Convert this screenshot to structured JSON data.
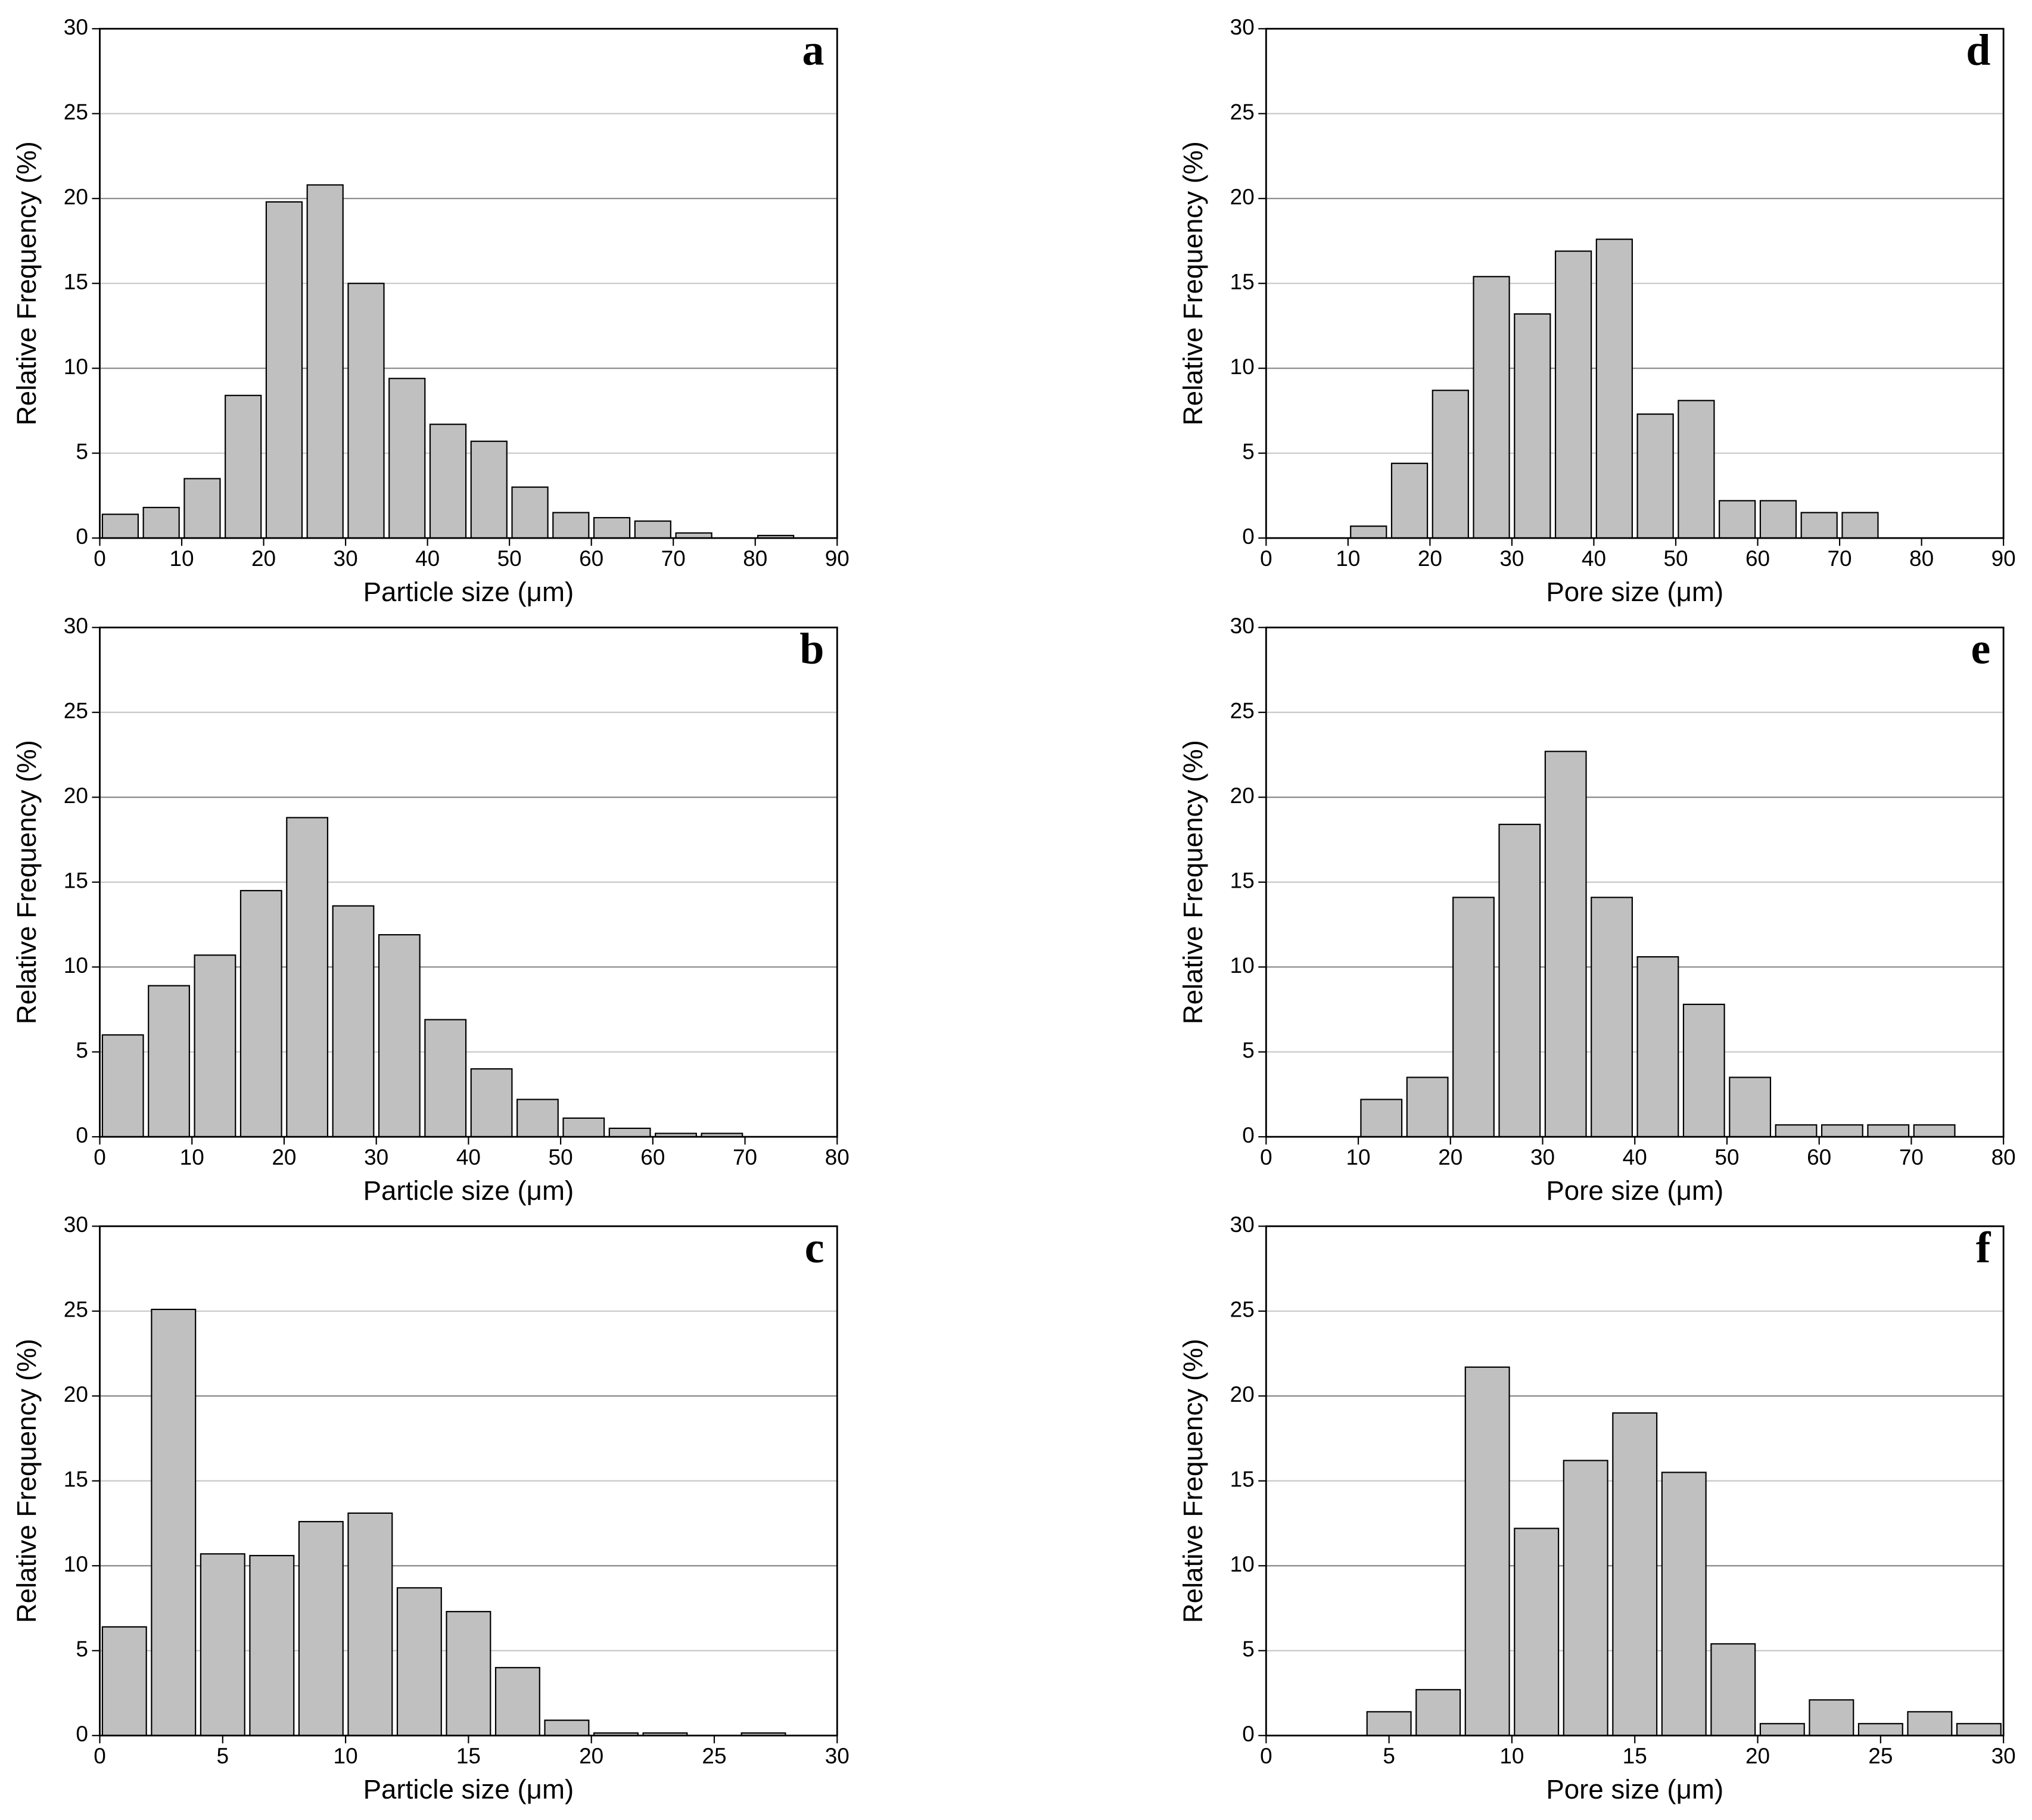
{
  "chart_data": [
    {
      "type": "histogram",
      "title": "a",
      "x_label": "Particle size (μm)",
      "y_label": "Relative Frequency (%)",
      "bins": [
        0,
        5,
        10,
        15,
        20,
        25,
        30,
        35,
        40,
        45,
        50,
        55,
        60,
        65,
        70,
        75,
        80,
        85
      ],
      "values": [
        1.4,
        1.8,
        3.5,
        8.4,
        19.8,
        20.8,
        15.0,
        9.4,
        6.7,
        5.7,
        3.0,
        1.5,
        1.2,
        1.0,
        0.3,
        0,
        0.15
      ],
      "color": "#c0c0c0",
      "xlim": [
        0,
        90
      ],
      "xticks": [
        0,
        10,
        20,
        30,
        40,
        50,
        60,
        70,
        80,
        90
      ],
      "ylim": [
        0,
        30
      ],
      "yticks": [
        0,
        5,
        10,
        15,
        20,
        25,
        30
      ],
      "grid": true
    },
    {
      "type": "histogram",
      "title": "b",
      "x_label": "Particle size (μm)",
      "y_label": "Relative Frequency (%)",
      "bins": [
        0,
        5,
        10,
        15,
        20,
        25,
        30,
        35,
        40,
        45,
        50,
        55,
        60,
        65,
        70
      ],
      "values": [
        6.0,
        8.9,
        10.7,
        14.5,
        18.8,
        13.6,
        11.9,
        6.9,
        4.0,
        2.2,
        1.1,
        0.5,
        0.2,
        0.2
      ],
      "color": "#c0c0c0",
      "xlim": [
        0,
        80
      ],
      "xticks": [
        0,
        10,
        20,
        30,
        40,
        50,
        60,
        70,
        80
      ],
      "ylim": [
        0,
        30
      ],
      "yticks": [
        0,
        5,
        10,
        15,
        20,
        25,
        30
      ],
      "grid": true
    },
    {
      "type": "histogram",
      "title": "c",
      "x_label": "Particle size (μm)",
      "y_label": "Relative Frequency (%)",
      "bins": [
        0,
        2,
        4,
        6,
        8,
        10,
        12,
        14,
        16,
        18,
        20,
        22,
        24,
        26,
        28
      ],
      "values": [
        6.4,
        25.1,
        10.7,
        10.6,
        12.6,
        13.1,
        8.7,
        7.3,
        4.0,
        0.9,
        0.15,
        0.15,
        0,
        0.15
      ],
      "color": "#c0c0c0",
      "xlim": [
        0,
        30
      ],
      "xticks": [
        0,
        5,
        10,
        15,
        20,
        25,
        30
      ],
      "ylim": [
        0,
        30
      ],
      "yticks": [
        0,
        5,
        10,
        15,
        20,
        25,
        30
      ],
      "grid": true
    },
    {
      "type": "histogram",
      "title": "d",
      "x_label": "Pore size (μm)",
      "y_label": "Relative Frequency (%)",
      "bins": [
        10,
        15,
        20,
        25,
        30,
        35,
        40,
        45,
        50,
        55,
        60,
        65,
        70,
        75
      ],
      "values": [
        0.7,
        4.4,
        8.7,
        15.4,
        13.2,
        16.9,
        17.6,
        7.3,
        8.1,
        2.2,
        2.2,
        1.5,
        1.5
      ],
      "color": "#c0c0c0",
      "xlim": [
        0,
        90
      ],
      "xticks": [
        0,
        10,
        20,
        30,
        40,
        50,
        60,
        70,
        80,
        90
      ],
      "ylim": [
        0,
        30
      ],
      "yticks": [
        0,
        5,
        10,
        15,
        20,
        25,
        30
      ],
      "grid": true
    },
    {
      "type": "histogram",
      "title": "e",
      "x_label": "Pore size (μm)",
      "y_label": "Relative Frequency (%)",
      "bins": [
        10,
        15,
        20,
        25,
        30,
        35,
        40,
        45,
        50,
        55,
        60,
        65,
        70,
        75
      ],
      "values": [
        2.2,
        3.5,
        14.1,
        18.4,
        22.7,
        14.1,
        10.6,
        7.8,
        3.5,
        0.7,
        0.7,
        0.7,
        0.7
      ],
      "color": "#c0c0c0",
      "xlim": [
        0,
        80
      ],
      "xticks": [
        0,
        10,
        20,
        30,
        40,
        50,
        60,
        70,
        80
      ],
      "ylim": [
        0,
        30
      ],
      "yticks": [
        0,
        5,
        10,
        15,
        20,
        25,
        30
      ],
      "grid": true
    },
    {
      "type": "histogram",
      "title": "f",
      "x_label": "Pore size (μm)",
      "y_label": "Relative Frequency (%)",
      "bins": [
        4,
        6,
        8,
        10,
        12,
        14,
        16,
        18,
        20,
        22,
        24,
        26,
        28,
        30
      ],
      "values": [
        1.4,
        2.7,
        21.7,
        12.2,
        16.2,
        19.0,
        15.5,
        5.4,
        0.7,
        2.1,
        0.7,
        1.4,
        0.7
      ],
      "color": "#c0c0c0",
      "xlim": [
        0,
        30
      ],
      "xticks": [
        0,
        5,
        10,
        15,
        20,
        25,
        30
      ],
      "ylim": [
        0,
        30
      ],
      "yticks": [
        0,
        5,
        10,
        15,
        20,
        25,
        30
      ],
      "grid": true
    }
  ]
}
